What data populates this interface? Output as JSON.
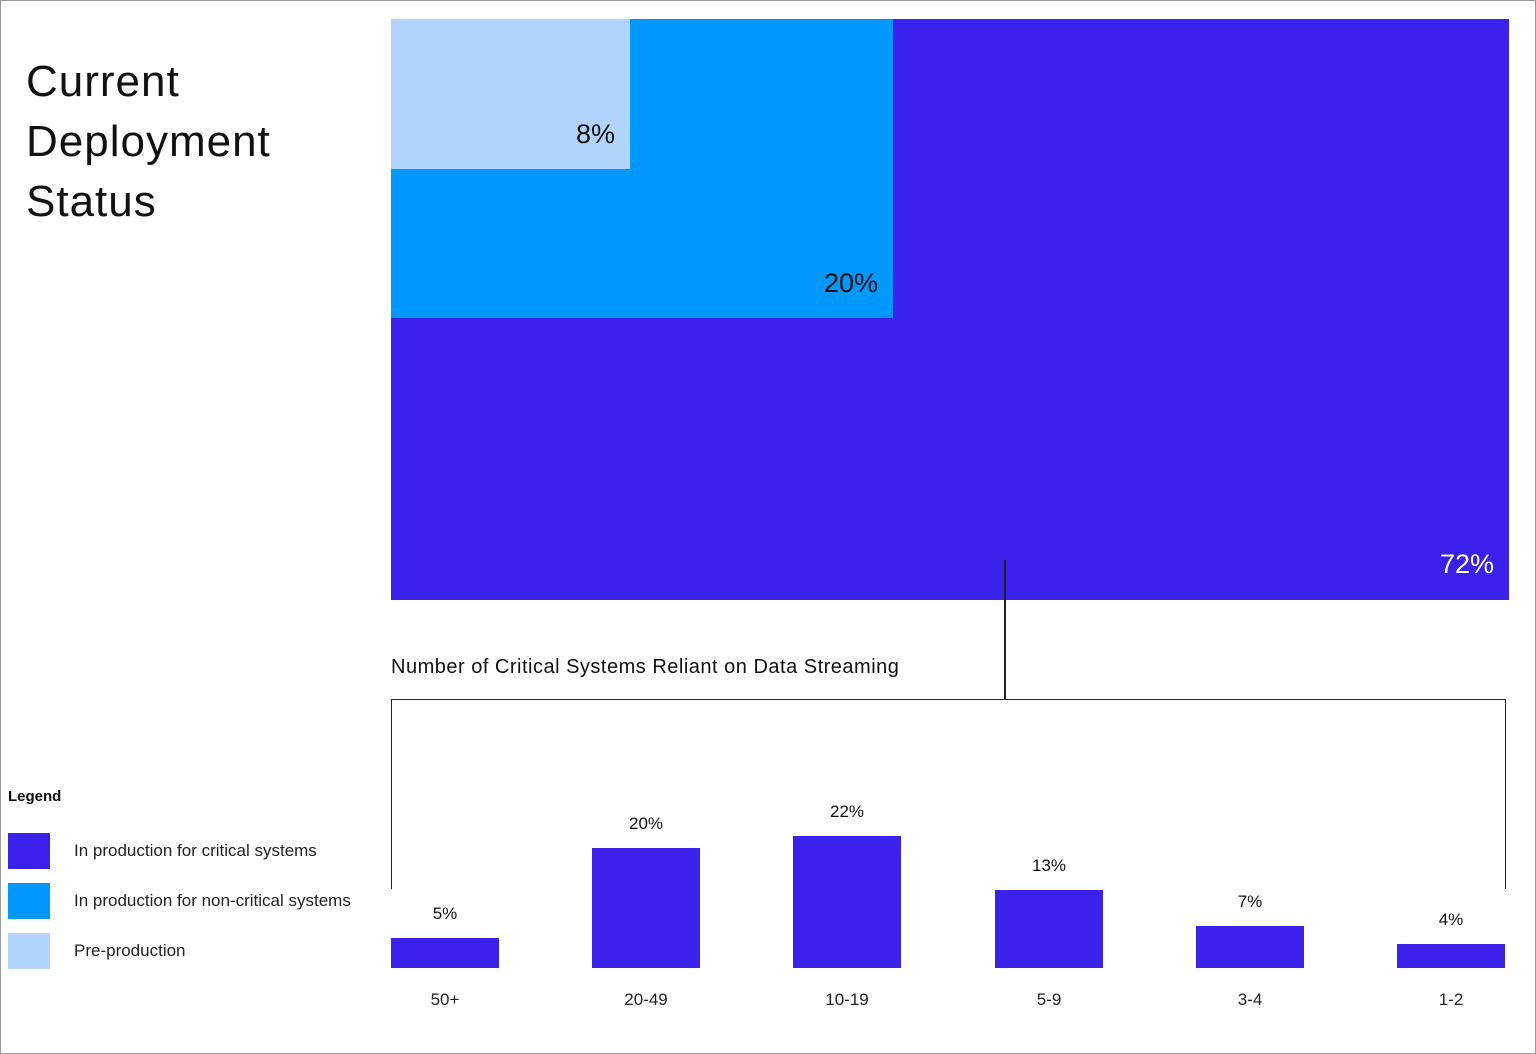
{
  "colors": {
    "critical": "#3a21ec",
    "non_critical": "#0098fc",
    "pre_production": "#b1d4fd",
    "line": "#222222"
  },
  "title": "Current Deployment Status",
  "treemap": {
    "items": [
      {
        "label": "In production for critical systems",
        "value_label": "72%",
        "value": 72
      },
      {
        "label": "In production for non-critical systems",
        "value_label": "20%",
        "value": 20
      },
      {
        "label": "Pre-production",
        "value_label": "8%",
        "value": 8
      }
    ]
  },
  "chart_data": [
    {
      "type": "treemap",
      "title": "Current Deployment Status",
      "categories": [
        "In production for critical systems",
        "In production for non-critical systems",
        "Pre-production"
      ],
      "values": [
        72,
        20,
        8
      ]
    },
    {
      "type": "bar",
      "title": "Number of Critical Systems Reliant on Data Streaming",
      "categories": [
        "50+",
        "20-49",
        "10-19",
        "5-9",
        "3-4",
        "1-2"
      ],
      "values": [
        5,
        20,
        22,
        13,
        7,
        4
      ],
      "value_labels": [
        "5%",
        "20%",
        "22%",
        "13%",
        "7%",
        "4%"
      ],
      "xlabel": "",
      "ylabel": ""
    }
  ],
  "bar_chart": {
    "title": "Number of Critical Systems Reliant on Data Streaming"
  },
  "legend": {
    "title": "Legend",
    "items": [
      {
        "label": "In production for critical systems",
        "color": "#3a21ec"
      },
      {
        "label": "In production for non-critical systems",
        "color": "#0098fc"
      },
      {
        "label": "Pre-production",
        "color": "#b1d4fd"
      }
    ]
  }
}
